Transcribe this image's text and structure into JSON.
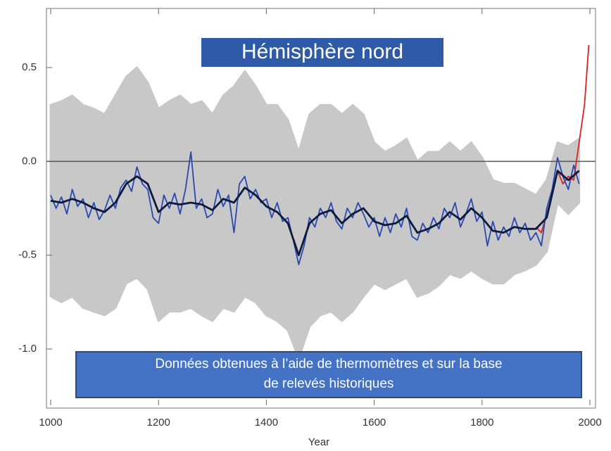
{
  "chart_data": {
    "type": "line",
    "title": "Hémisphère nord",
    "annotation": [
      "Données obtenues à l’aide de thermomètres et sur la base",
      "de relevés historiques"
    ],
    "xlabel": "Year",
    "xlim": [
      1000,
      2000
    ],
    "xticks": [
      1000,
      1200,
      1400,
      1600,
      1800,
      2000
    ],
    "ylim": [
      -1.3,
      0.8
    ],
    "yticks": [
      0.5,
      {
        "value": 0,
        "label": "0.0"
      },
      {
        "value": -0.5,
        "label": "-0.5"
      },
      {
        "value": -1,
        "label": "-1.0"
      }
    ],
    "band": {
      "color": "#c8c8c8",
      "x": [
        1000,
        1020,
        1040,
        1060,
        1080,
        1100,
        1120,
        1140,
        1160,
        1180,
        1200,
        1220,
        1240,
        1260,
        1280,
        1300,
        1320,
        1340,
        1360,
        1380,
        1400,
        1420,
        1440,
        1460,
        1480,
        1500,
        1520,
        1540,
        1560,
        1580,
        1600,
        1620,
        1640,
        1660,
        1680,
        1700,
        1720,
        1740,
        1760,
        1780,
        1800,
        1820,
        1840,
        1860,
        1880,
        1900,
        1920,
        1940,
        1960,
        1980
      ],
      "upper": [
        0.3,
        0.32,
        0.35,
        0.3,
        0.28,
        0.25,
        0.35,
        0.45,
        0.5,
        0.42,
        0.28,
        0.32,
        0.35,
        0.3,
        0.32,
        0.25,
        0.35,
        0.4,
        0.48,
        0.4,
        0.3,
        0.3,
        0.22,
        0.05,
        0.25,
        0.3,
        0.3,
        0.25,
        0.3,
        0.25,
        0.1,
        0.05,
        0.08,
        0.12,
        0.0,
        0.05,
        0.05,
        0.1,
        0.05,
        0.1,
        0.02,
        -0.1,
        -0.12,
        -0.12,
        -0.15,
        -0.18,
        -0.1,
        0.1,
        0.08,
        0.12
      ],
      "lower": [
        -0.72,
        -0.75,
        -0.72,
        -0.78,
        -0.8,
        -0.82,
        -0.78,
        -0.65,
        -0.62,
        -0.68,
        -0.85,
        -0.8,
        -0.8,
        -0.78,
        -0.82,
        -0.85,
        -0.78,
        -0.8,
        -0.72,
        -0.75,
        -0.82,
        -0.85,
        -0.9,
        -1.05,
        -0.88,
        -0.82,
        -0.8,
        -0.85,
        -0.8,
        -0.72,
        -0.65,
        -0.68,
        -0.65,
        -0.62,
        -0.72,
        -0.7,
        -0.66,
        -0.6,
        -0.62,
        -0.58,
        -0.62,
        -0.65,
        -0.65,
        -0.6,
        -0.58,
        -0.55,
        -0.48,
        -0.22,
        -0.28,
        -0.22
      ]
    },
    "series": [
      {
        "color": "#e02020",
        "x": [
          1900,
          1910,
          1920,
          1930,
          1940,
          1950,
          1960,
          1970,
          1980,
          1990,
          1998
        ],
        "values": [
          -0.35,
          -0.38,
          -0.28,
          -0.18,
          -0.05,
          -0.12,
          -0.08,
          -0.1,
          0.1,
          0.3,
          0.62
        ]
      },
      {
        "color": "#2a48b0",
        "x": [
          1000,
          1010,
          1020,
          1030,
          1040,
          1050,
          1060,
          1070,
          1080,
          1090,
          1100,
          1110,
          1120,
          1130,
          1140,
          1150,
          1160,
          1170,
          1180,
          1190,
          1200,
          1210,
          1220,
          1230,
          1240,
          1250,
          1260,
          1270,
          1280,
          1290,
          1300,
          1310,
          1320,
          1330,
          1340,
          1350,
          1360,
          1370,
          1380,
          1390,
          1400,
          1410,
          1420,
          1430,
          1440,
          1450,
          1460,
          1470,
          1480,
          1490,
          1500,
          1510,
          1520,
          1530,
          1540,
          1550,
          1560,
          1570,
          1580,
          1590,
          1600,
          1610,
          1620,
          1630,
          1640,
          1650,
          1660,
          1670,
          1680,
          1690,
          1700,
          1710,
          1720,
          1730,
          1740,
          1750,
          1760,
          1770,
          1780,
          1790,
          1800,
          1810,
          1820,
          1830,
          1840,
          1850,
          1860,
          1870,
          1880,
          1890,
          1900,
          1910,
          1920,
          1930,
          1940,
          1950,
          1960,
          1970,
          1980
        ],
        "values": [
          -0.18,
          -0.25,
          -0.19,
          -0.28,
          -0.15,
          -0.24,
          -0.2,
          -0.3,
          -0.22,
          -0.31,
          -0.26,
          -0.18,
          -0.25,
          -0.14,
          -0.1,
          -0.16,
          -0.03,
          -0.12,
          -0.15,
          -0.3,
          -0.33,
          -0.18,
          -0.25,
          -0.17,
          -0.28,
          -0.15,
          0.05,
          -0.25,
          -0.2,
          -0.3,
          -0.28,
          -0.15,
          -0.24,
          -0.18,
          -0.38,
          -0.12,
          -0.08,
          -0.2,
          -0.15,
          -0.22,
          -0.2,
          -0.3,
          -0.22,
          -0.32,
          -0.3,
          -0.42,
          -0.55,
          -0.45,
          -0.3,
          -0.35,
          -0.25,
          -0.3,
          -0.22,
          -0.32,
          -0.36,
          -0.25,
          -0.3,
          -0.22,
          -0.28,
          -0.35,
          -0.3,
          -0.4,
          -0.3,
          -0.38,
          -0.28,
          -0.35,
          -0.25,
          -0.4,
          -0.42,
          -0.33,
          -0.38,
          -0.3,
          -0.36,
          -0.25,
          -0.3,
          -0.22,
          -0.35,
          -0.28,
          -0.2,
          -0.32,
          -0.27,
          -0.45,
          -0.32,
          -0.42,
          -0.35,
          -0.4,
          -0.3,
          -0.38,
          -0.33,
          -0.42,
          -0.38,
          -0.45,
          -0.25,
          -0.15,
          0.02,
          -0.08,
          -0.15,
          -0.02,
          -0.12
        ]
      },
      {
        "color": "#0c1a3c",
        "x": [
          1000,
          1020,
          1040,
          1060,
          1080,
          1100,
          1120,
          1140,
          1160,
          1180,
          1200,
          1220,
          1240,
          1260,
          1280,
          1300,
          1320,
          1340,
          1360,
          1380,
          1400,
          1420,
          1440,
          1460,
          1480,
          1500,
          1520,
          1540,
          1560,
          1580,
          1600,
          1620,
          1640,
          1660,
          1680,
          1700,
          1720,
          1740,
          1760,
          1780,
          1800,
          1820,
          1840,
          1860,
          1880,
          1900,
          1920,
          1940,
          1960,
          1980
        ],
        "values": [
          -0.21,
          -0.22,
          -0.2,
          -0.22,
          -0.25,
          -0.27,
          -0.22,
          -0.12,
          -0.08,
          -0.12,
          -0.27,
          -0.22,
          -0.23,
          -0.22,
          -0.23,
          -0.26,
          -0.2,
          -0.22,
          -0.14,
          -0.18,
          -0.24,
          -0.27,
          -0.33,
          -0.5,
          -0.33,
          -0.28,
          -0.26,
          -0.33,
          -0.28,
          -0.25,
          -0.32,
          -0.34,
          -0.33,
          -0.29,
          -0.38,
          -0.36,
          -0.33,
          -0.27,
          -0.31,
          -0.25,
          -0.3,
          -0.37,
          -0.38,
          -0.35,
          -0.36,
          -0.36,
          -0.3,
          -0.05,
          -0.1,
          -0.05
        ]
      }
    ]
  }
}
